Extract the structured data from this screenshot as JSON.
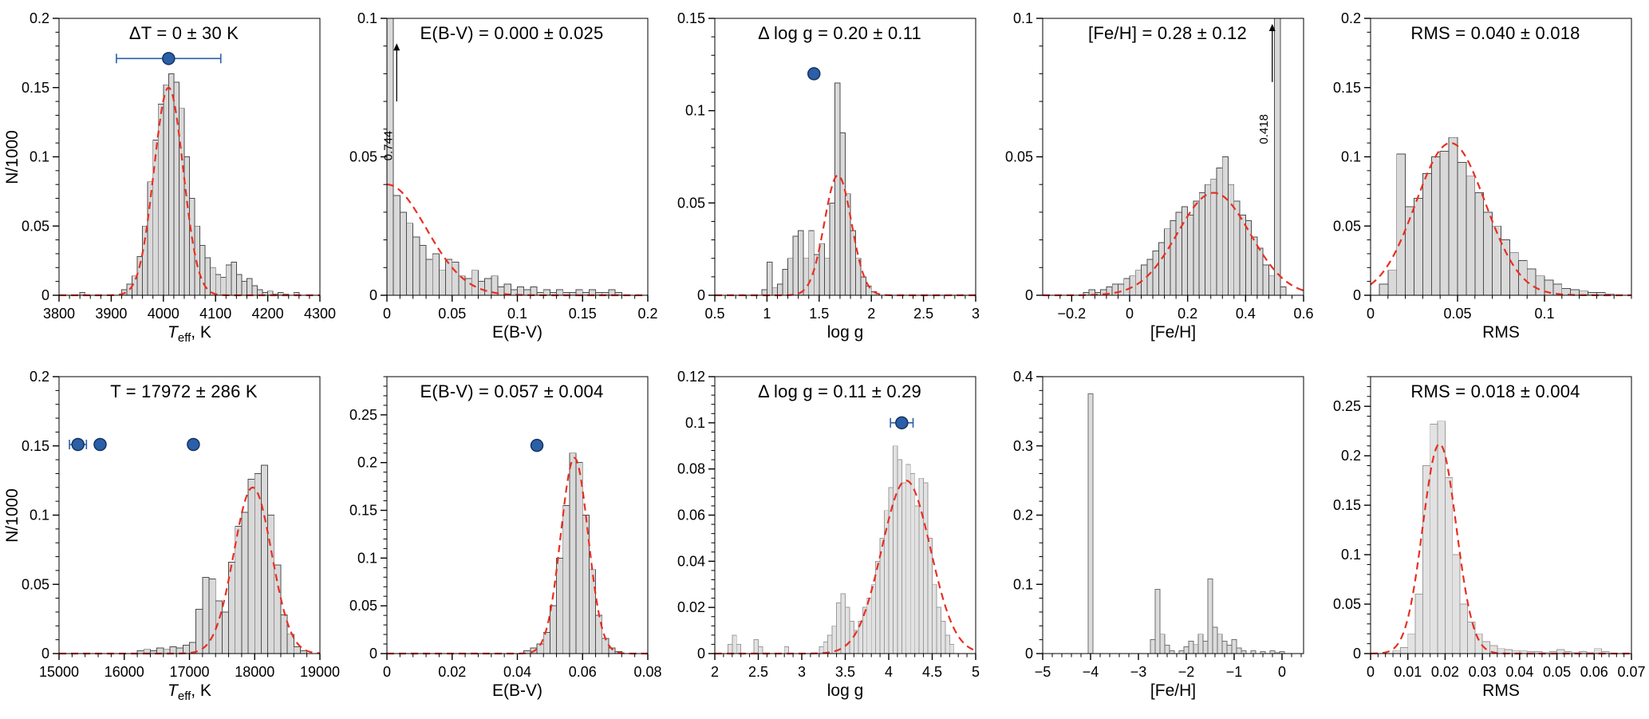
{
  "style": {
    "background": "#ffffff",
    "fit_color": "#e82f22",
    "marker_fill": "#2b5fa8",
    "marker_stroke": "#14335f",
    "axis_color": "#000000"
  },
  "chart_data": [
    {
      "id": "delta-teff",
      "type": "bar",
      "title": "ΔT = 0 ± 30 K",
      "xlabel": {
        "pre": "T",
        "sub": "eff",
        "post": ", K",
        "italic": true
      },
      "ylabel": "N/1000",
      "xlim": [
        3800,
        4300
      ],
      "ylim": [
        0,
        0.2
      ],
      "xticks": [
        3800,
        3900,
        4000,
        4100,
        4200,
        4300
      ],
      "xtick_labels": [
        "3800",
        "3900",
        "4000",
        "4100",
        "4200",
        "4300"
      ],
      "yticks": [
        0,
        0.05,
        0.1,
        0.15,
        0.2
      ],
      "ytick_labels": [
        "0",
        "0.05",
        "0.1",
        "0.15",
        "0.2"
      ],
      "bin_start": 3840,
      "bin_width": 10,
      "values": [
        0.002,
        0,
        0,
        0,
        0,
        0,
        0,
        0,
        0.004,
        0.008,
        0.014,
        0.028,
        0.05,
        0.082,
        0.112,
        0.138,
        0.152,
        0.16,
        0.154,
        0.135,
        0.1,
        0.07,
        0.05,
        0.036,
        0.027,
        0.02,
        0.015,
        0.013,
        0.022,
        0.024,
        0.015,
        0.01,
        0.012,
        0.007,
        0.004,
        0.002,
        0.003,
        0.001,
        0.002,
        0.001,
        0,
        0.002
      ],
      "bar_fill": "#d9d9d9",
      "bar_stroke": "#4d4d4d",
      "fit": {
        "mean": 4010,
        "sigma": 28,
        "amp": 0.15
      },
      "markers": [
        {
          "x": 4010,
          "y": 0.171,
          "xerr": 100
        }
      ],
      "annotations": []
    },
    {
      "id": "ebv-top",
      "type": "bar",
      "title": "E(B-V) = 0.000 ± 0.025",
      "xlabel": {
        "pre": "E(B-V)",
        "sub": "",
        "post": ""
      },
      "xlim": [
        0,
        0.2
      ],
      "ylim": [
        0,
        0.1
      ],
      "xticks": [
        0,
        0.05,
        0.1,
        0.15,
        0.2
      ],
      "xtick_labels": [
        "0",
        "0.05",
        "0.1",
        "0.15",
        "0.2"
      ],
      "yticks": [
        0,
        0.05,
        0.1
      ],
      "ytick_labels": [
        "0",
        "0.05",
        "0.1"
      ],
      "bin_start": 0,
      "bin_width": 0.005,
      "values": [
        0.744,
        0.036,
        0.03,
        0.026,
        0.021,
        0.018,
        0.013,
        0.015,
        0.009,
        0.013,
        0.012,
        0.007,
        0.006,
        0.009,
        0.005,
        0.006,
        0.007,
        0.003,
        0.004,
        0.002,
        0.003,
        0.002,
        0.003,
        0.001,
        0.002,
        0.001,
        0.002,
        0.001,
        0.001,
        0.002,
        0.001,
        0.002,
        0.001,
        0.001,
        0.002,
        0.001
      ],
      "bar_fill": "#d9d9d9",
      "bar_stroke": "#4d4d4d",
      "fit": {
        "mean": 0,
        "sigma": 0.03,
        "amp": 0.04
      },
      "markers": [],
      "annotations": [
        {
          "x": 0.0075,
          "arrow_y1": 0.07,
          "arrow_y2": 0.091,
          "text_y": 0.054,
          "text": "0.744"
        }
      ]
    },
    {
      "id": "delta-logg-top",
      "type": "bar",
      "title": "Δ log g = 0.20 ± 0.11",
      "xlabel": {
        "pre": "log g",
        "sub": "",
        "post": ""
      },
      "xlim": [
        0.5,
        3
      ],
      "ylim": [
        0,
        0.15
      ],
      "xticks": [
        0.5,
        1,
        1.5,
        2,
        2.5,
        3
      ],
      "xtick_labels": [
        "0.5",
        "1",
        "1.5",
        "2",
        "2.5",
        "3"
      ],
      "yticks": [
        0,
        0.05,
        0.1,
        0.15
      ],
      "ytick_labels": [
        "0",
        "0.05",
        "0.1",
        "0.15"
      ],
      "bin_start": 0.95,
      "bin_width": 0.05,
      "values": [
        0.003,
        0.018,
        0.004,
        0.006,
        0.014,
        0.02,
        0.032,
        0.035,
        0.02,
        0.035,
        0.022,
        0.028,
        0.02,
        0.05,
        0.115,
        0.088,
        0.055,
        0.035,
        0.02,
        0.01,
        0.005,
        0.002
      ],
      "bar_fill": "#d9d9d9",
      "bar_stroke": "#4d4d4d",
      "fit": {
        "mean": 1.68,
        "sigma": 0.13,
        "amp": 0.065
      },
      "markers": [
        {
          "x": 1.45,
          "y": 0.12,
          "xerr": 0
        }
      ],
      "annotations": []
    },
    {
      "id": "feh-top",
      "type": "bar",
      "title": "[Fe/H] = 0.28 ± 0.12",
      "xlabel": {
        "pre": "[Fe/H]",
        "sub": "",
        "post": ""
      },
      "xlim": [
        -0.3,
        0.6
      ],
      "ylim": [
        0,
        0.1
      ],
      "xticks": [
        -0.2,
        0,
        0.2,
        0.4,
        0.6
      ],
      "xtick_labels": [
        "−0.2",
        "0",
        "0.2",
        "0.4",
        "0.6"
      ],
      "yticks": [
        0,
        0.05,
        0.1
      ],
      "ytick_labels": [
        "0",
        "0.05",
        "0.1"
      ],
      "bin_start": -0.16,
      "bin_width": 0.02,
      "values": [
        0.001,
        0.002,
        0.001,
        0.002,
        0.003,
        0.004,
        0.004,
        0.006,
        0.007,
        0.009,
        0.011,
        0.013,
        0.016,
        0.019,
        0.024,
        0.027,
        0.03,
        0.032,
        0.029,
        0.034,
        0.037,
        0.04,
        0.042,
        0.046,
        0.05,
        0.04,
        0.034,
        0.029,
        0.027,
        0.021,
        0.017,
        0.011,
        0.007,
        0.418,
        0.003
      ],
      "bar_fill": "#d9d9d9",
      "bar_stroke": "#4d4d4d",
      "fit": {
        "mean": 0.29,
        "sigma": 0.125,
        "amp": 0.037
      },
      "markers": [],
      "annotations": [
        {
          "x": 0.492,
          "arrow_y1": 0.077,
          "arrow_y2": 0.098,
          "text_y": 0.06,
          "text": "0.418"
        }
      ]
    },
    {
      "id": "rms-top",
      "type": "bar",
      "title": "RMS = 0.040 ± 0.018",
      "xlabel": {
        "pre": "RMS",
        "sub": "",
        "post": ""
      },
      "xlim": [
        0,
        0.15
      ],
      "ylim": [
        0,
        0.2
      ],
      "xticks": [
        0,
        0.05,
        0.1
      ],
      "xtick_labels": [
        "0",
        "0.05",
        "0.1"
      ],
      "yticks": [
        0,
        0.05,
        0.1,
        0.15,
        0.2
      ],
      "ytick_labels": [
        "0",
        "0.05",
        "0.1",
        "0.15",
        "0.2"
      ],
      "bin_start": 0.005,
      "bin_width": 0.005,
      "values": [
        0.008,
        0.018,
        0.102,
        0.064,
        0.07,
        0.088,
        0.1,
        0.104,
        0.114,
        0.096,
        0.086,
        0.074,
        0.06,
        0.05,
        0.04,
        0.031,
        0.025,
        0.019,
        0.014,
        0.011,
        0.008,
        0.005,
        0.004,
        0.003,
        0.002,
        0.002,
        0.001
      ],
      "bar_fill": "#d9d9d9",
      "bar_stroke": "#4d4d4d",
      "fit": {
        "mean": 0.046,
        "sigma": 0.02,
        "amp": 0.11
      },
      "markers": [],
      "annotations": []
    },
    {
      "id": "teff-bottom",
      "type": "bar",
      "title": "T = 17972 ± 286 K",
      "xlabel": {
        "pre": "T",
        "sub": "eff",
        "post": ", K",
        "italic": true
      },
      "ylabel": "N/1000",
      "xlim": [
        15000,
        19000
      ],
      "ylim": [
        0,
        0.2
      ],
      "xticks": [
        15000,
        16000,
        17000,
        18000,
        19000
      ],
      "xtick_labels": [
        "15000",
        "16000",
        "17000",
        "18000",
        "19000"
      ],
      "yticks": [
        0,
        0.05,
        0.1,
        0.15,
        0.2
      ],
      "ytick_labels": [
        "0",
        "0.05",
        "0.1",
        "0.15",
        "0.2"
      ],
      "bin_start": 16200,
      "bin_width": 100,
      "values": [
        0.002,
        0.003,
        0.002,
        0.004,
        0.003,
        0.005,
        0.004,
        0.006,
        0.008,
        0.032,
        0.055,
        0.054,
        0.038,
        0.03,
        0.066,
        0.092,
        0.102,
        0.126,
        0.13,
        0.136,
        0.1,
        0.064,
        0.028,
        0.014,
        0.005,
        0.002
      ],
      "bar_fill": "#d9d9d9",
      "bar_stroke": "#4d4d4d",
      "fit": {
        "mean": 17970,
        "sigma": 290,
        "amp": 0.12
      },
      "markers": [
        {
          "x": 15290,
          "y": 0.151,
          "xerr": 130
        },
        {
          "x": 15630,
          "y": 0.151,
          "xerr": 0
        },
        {
          "x": 17060,
          "y": 0.151,
          "xerr": 0
        }
      ],
      "annotations": []
    },
    {
      "id": "ebv-bottom",
      "type": "bar",
      "title": "E(B-V) = 0.057 ± 0.004",
      "xlabel": {
        "pre": "E(B-V)",
        "sub": "",
        "post": ""
      },
      "xlim": [
        0,
        0.08
      ],
      "ylim": [
        0,
        0.29
      ],
      "xticks": [
        0,
        0.02,
        0.04,
        0.06,
        0.08
      ],
      "xtick_labels": [
        "0",
        "0.02",
        "0.04",
        "0.06",
        "0.08"
      ],
      "yticks": [
        0,
        0.05,
        0.1,
        0.15,
        0.2,
        0.25
      ],
      "ytick_labels": [
        "0",
        "0.05",
        "0.1",
        "0.15",
        "0.2",
        "0.25"
      ],
      "bin_start": 0.042,
      "bin_width": 0.002,
      "values": [
        0.003,
        0.006,
        0.01,
        0.022,
        0.05,
        0.1,
        0.155,
        0.21,
        0.2,
        0.145,
        0.088,
        0.04,
        0.016,
        0.006,
        0.002
      ],
      "bar_fill": "#d9d9d9",
      "bar_stroke": "#4d4d4d",
      "fit": {
        "mean": 0.0575,
        "sigma": 0.0042,
        "amp": 0.205
      },
      "markers": [
        {
          "x": 0.046,
          "y": 0.218,
          "xerr": 0
        }
      ],
      "annotations": []
    },
    {
      "id": "delta-logg-bottom",
      "type": "bar",
      "title": "Δ log g = 0.11 ± 0.29",
      "xlabel": {
        "pre": "log g",
        "sub": "",
        "post": ""
      },
      "xlim": [
        2,
        5
      ],
      "ylim": [
        0,
        0.12
      ],
      "xticks": [
        2,
        2.5,
        3,
        3.5,
        4,
        4.5,
        5
      ],
      "xtick_labels": [
        "2",
        "2.5",
        "3",
        "3.5",
        "4",
        "4.5",
        "5"
      ],
      "yticks": [
        0,
        0.02,
        0.04,
        0.06,
        0.08,
        0.1,
        0.12
      ],
      "ytick_labels": [
        "0",
        "0.02",
        "0.04",
        "0.06",
        "0.08",
        "0.1",
        "0.12"
      ],
      "bin_start": 2.15,
      "bin_width": 0.05,
      "values": [
        0.004,
        0.008,
        0.004,
        0,
        0,
        0,
        0.006,
        0.003,
        0,
        0,
        0,
        0,
        0,
        0.003,
        0,
        0,
        0,
        0,
        0,
        0,
        0,
        0.003,
        0.005,
        0.008,
        0.012,
        0.022,
        0.026,
        0.02,
        0.014,
        0.01,
        0.014,
        0.02,
        0.024,
        0.03,
        0.04,
        0.05,
        0.062,
        0.072,
        0.09,
        0.084,
        0.074,
        0.082,
        0.078,
        0.064,
        0.076,
        0.074,
        0.05,
        0.03,
        0.02,
        0.014,
        0.008,
        0.004
      ],
      "bar_fill": "#e2e2e2",
      "bar_stroke": "#9b9b9b",
      "fit": {
        "mean": 4.2,
        "sigma": 0.28,
        "amp": 0.075
      },
      "markers": [
        {
          "x": 4.15,
          "y": 0.1,
          "xerr": 0.13
        }
      ],
      "annotations": []
    },
    {
      "id": "feh-bottom",
      "type": "bar",
      "title": "",
      "xlabel": {
        "pre": "[Fe/H]",
        "sub": "",
        "post": ""
      },
      "xlim": [
        -5,
        0.45
      ],
      "ylim": [
        0,
        0.4
      ],
      "xticks": [
        -5,
        -4,
        -3,
        -2,
        -1,
        0
      ],
      "xtick_labels": [
        "−5",
        "−4",
        "−3",
        "−2",
        "−1",
        "0"
      ],
      "yticks": [
        0,
        0.1,
        0.2,
        0.3,
        0.4
      ],
      "ytick_labels": [
        "0",
        "0.1",
        "0.2",
        "0.3",
        "0.4"
      ],
      "bin_start": -4.05,
      "bin_width": 0.1,
      "values": [
        0.375,
        0,
        0,
        0,
        0,
        0,
        0,
        0,
        0,
        0,
        0,
        0,
        0,
        0.02,
        0.093,
        0.028,
        0.012,
        0.004,
        0,
        0.004,
        0.01,
        0.018,
        0.013,
        0.028,
        0.018,
        0.108,
        0.038,
        0.028,
        0.018,
        0.012,
        0.02,
        0.008,
        0.004,
        0,
        0.004,
        0,
        0.003,
        0,
        0.004,
        0.002,
        0.003
      ],
      "bar_fill": "#dcdcdc",
      "bar_stroke": "#6e6e6e",
      "fit": null,
      "markers": [],
      "annotations": []
    },
    {
      "id": "rms-bottom",
      "type": "bar",
      "title": "RMS = 0.018 ± 0.004",
      "xlabel": {
        "pre": "RMS",
        "sub": "",
        "post": ""
      },
      "xlim": [
        0,
        0.07
      ],
      "ylim": [
        0,
        0.28
      ],
      "xticks": [
        0,
        0.01,
        0.02,
        0.03,
        0.04,
        0.05,
        0.06,
        0.07
      ],
      "xtick_labels": [
        "0",
        "0.01",
        "0.02",
        "0.03",
        "0.04",
        "0.05",
        "0.06",
        "0.07"
      ],
      "yticks": [
        0,
        0.05,
        0.1,
        0.15,
        0.2,
        0.25
      ],
      "ytick_labels": [
        "0",
        "0.05",
        "0.1",
        "0.15",
        "0.2",
        "0.25"
      ],
      "bin_start": 0.006,
      "bin_width": 0.002,
      "values": [
        0.003,
        0.006,
        0.02,
        0.06,
        0.19,
        0.232,
        0.235,
        0.178,
        0.1,
        0.05,
        0.032,
        0.02,
        0.012,
        0.008,
        0.005,
        0.004,
        0.003,
        0.003,
        0.002,
        0.002,
        0.001,
        0.002,
        0.004,
        0.002,
        0.001,
        0.002,
        0.001,
        0.005,
        0.002
      ],
      "bar_fill": "#e2e2e2",
      "bar_stroke": "#9b9b9b",
      "fit": {
        "mean": 0.0185,
        "sigma": 0.0045,
        "amp": 0.212
      },
      "markers": [],
      "annotations": []
    }
  ]
}
